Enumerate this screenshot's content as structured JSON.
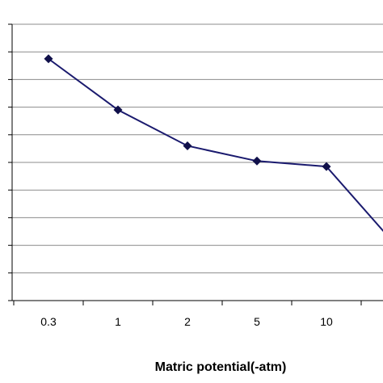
{
  "chart_data": {
    "type": "line",
    "title": "",
    "xlabel": "Matric potential(-atm)",
    "ylabel": "",
    "categories": [
      "0.3",
      "1",
      "2",
      "5",
      "10",
      ""
    ],
    "series": [
      {
        "values": [
          8.75,
          6.9,
          5.6,
          5.05,
          4.85,
          2.0
        ]
      }
    ],
    "ylim": [
      0,
      10
    ],
    "grid": true,
    "legend": "none",
    "colors": {
      "line": "#1a1a6e",
      "marker": "#10104a",
      "grid": "#8c8c8c",
      "axis": "#000000"
    }
  }
}
